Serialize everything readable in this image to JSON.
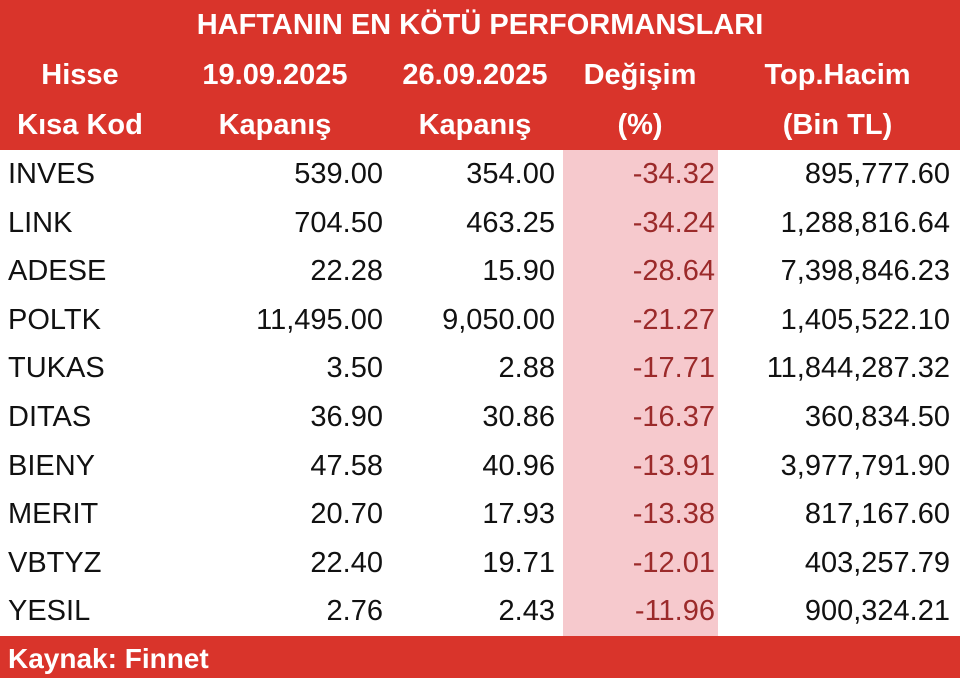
{
  "header": {
    "title": "HAFTANIN EN KÖTÜ PERFORMANSLARI",
    "columns": [
      [
        "Hisse",
        "Kısa Kod"
      ],
      [
        "19.09.2025",
        "Kapanış"
      ],
      [
        "26.09.2025",
        "Kapanış"
      ],
      [
        "Değişim",
        "(%)"
      ],
      [
        "Top.Hacim",
        "(Bin TL)"
      ]
    ]
  },
  "table": {
    "rows": [
      [
        "INVES",
        "539.00",
        "354.00",
        "-34.32",
        "895,777.60"
      ],
      [
        "LINK",
        "704.50",
        "463.25",
        "-34.24",
        "1,288,816.64"
      ],
      [
        "ADESE",
        "22.28",
        "15.90",
        "-28.64",
        "7,398,846.23"
      ],
      [
        "POLTK",
        "11,495.00",
        "9,050.00",
        "-21.27",
        "1,405,522.10"
      ],
      [
        "TUKAS",
        "3.50",
        "2.88",
        "-17.71",
        "11,844,287.32"
      ],
      [
        "DITAS",
        "36.90",
        "30.86",
        "-16.37",
        "360,834.50"
      ],
      [
        "BIENY",
        "47.58",
        "40.96",
        "-13.91",
        "3,977,791.90"
      ],
      [
        "MERIT",
        "20.70",
        "17.93",
        "-13.38",
        "817,167.60"
      ],
      [
        "VBTYZ",
        "22.40",
        "19.71",
        "-12.01",
        "403,257.79"
      ],
      [
        "YESIL",
        "2.76",
        "2.43",
        "-11.96",
        "900,324.21"
      ]
    ]
  },
  "footer": {
    "source": "Kaynak: Finnet"
  }
}
